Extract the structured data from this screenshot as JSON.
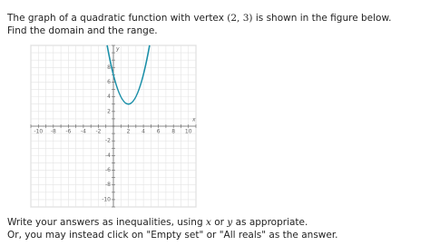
{
  "intro": {
    "before": "The graph of a quadratic function with vertex ",
    "vertex": "(2, 3)",
    "after": " is shown in the figure below.",
    "task": "Find the domain and the range."
  },
  "figure": {
    "x_label": "x",
    "y_label": "y",
    "xlim": [
      -11,
      11
    ],
    "ylim": [
      -11,
      11
    ],
    "x_ticks": [
      -10,
      -8,
      -6,
      -4,
      -2,
      2,
      4,
      6,
      8,
      10
    ],
    "y_ticks": [
      8,
      6,
      4,
      2,
      -2,
      -4,
      -6,
      -8,
      -10
    ]
  },
  "instructions": {
    "p1": "Write your answers as inequalities, using ",
    "x": "x",
    "p2": " or ",
    "y": "y",
    "p3": " as appropriate.",
    "line2": "Or, you may instead click on \"Empty set\" or \"All reals\" as the answer."
  }
}
